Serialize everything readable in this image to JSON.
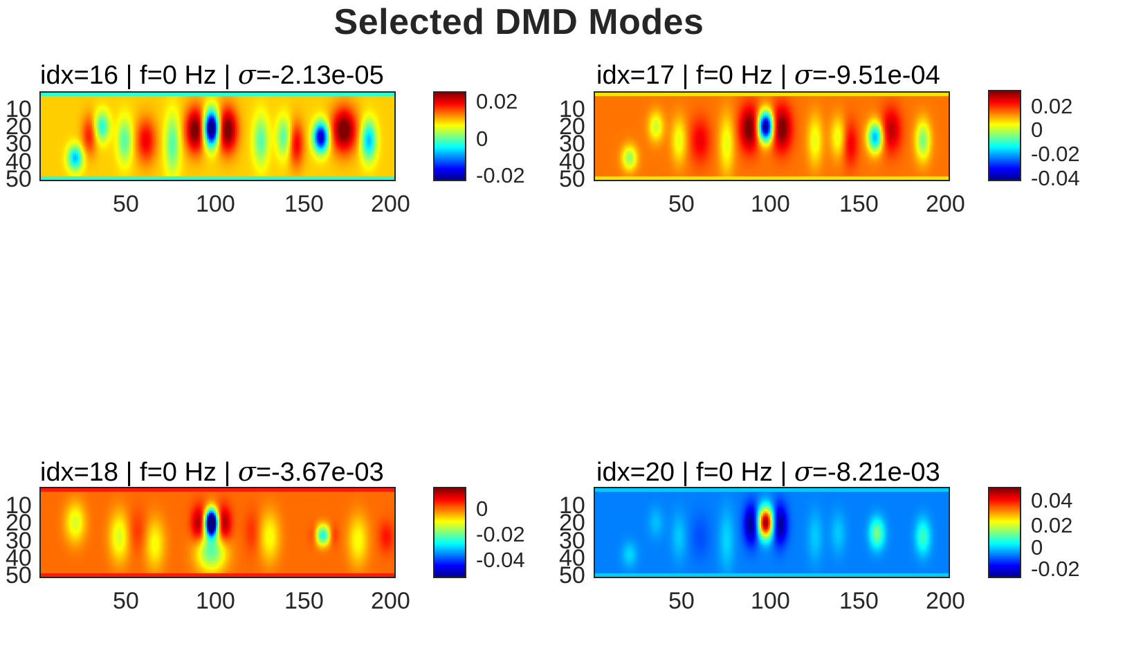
{
  "figure": {
    "title": "Selected DMD Modes"
  },
  "chart_data": [
    {
      "type": "heatmap",
      "title_parts": {
        "prefix": "idx=16 | f=0 Hz | ",
        "symbol": "σ",
        "suffix": "=-2.13e-05"
      },
      "xlim": [
        1,
        200
      ],
      "ylim": [
        1,
        50
      ],
      "y_reversed": true,
      "xticks": [
        "50",
        "100",
        "150",
        "200"
      ],
      "yticks": [
        "10",
        "20",
        "30",
        "40",
        "50"
      ],
      "clim": [
        -0.025,
        0.03
      ],
      "colorbar_ticks": [
        {
          "value": 0.02,
          "label": "0.02"
        },
        {
          "value": 0,
          "label": "0"
        },
        {
          "value": -0.02,
          "label": "-0.02"
        }
      ],
      "background": 0.012,
      "border": -0.002,
      "blobs": [
        {
          "x": 97,
          "y": 21,
          "sx": 3,
          "sy": 7,
          "v": -0.045
        },
        {
          "x": 88,
          "y": 22,
          "sx": 4,
          "sy": 9,
          "v": 0.02
        },
        {
          "x": 106,
          "y": 22,
          "sx": 4,
          "sy": 9,
          "v": 0.02
        },
        {
          "x": 159,
          "y": 26,
          "sx": 3,
          "sy": 6,
          "v": -0.035
        },
        {
          "x": 172,
          "y": 22,
          "sx": 5,
          "sy": 9,
          "v": 0.02
        },
        {
          "x": 186,
          "y": 28,
          "sx": 3,
          "sy": 8,
          "v": -0.02
        },
        {
          "x": 20,
          "y": 38,
          "sx": 3,
          "sy": 5,
          "v": -0.02
        },
        {
          "x": 35,
          "y": 20,
          "sx": 3,
          "sy": 6,
          "v": -0.015
        },
        {
          "x": 48,
          "y": 28,
          "sx": 3,
          "sy": 9,
          "v": -0.012
        },
        {
          "x": 75,
          "y": 30,
          "sx": 3,
          "sy": 12,
          "v": -0.012
        },
        {
          "x": 125,
          "y": 28,
          "sx": 3,
          "sy": 10,
          "v": -0.012
        },
        {
          "x": 138,
          "y": 26,
          "sx": 3,
          "sy": 8,
          "v": -0.012
        },
        {
          "x": 60,
          "y": 28,
          "sx": 4,
          "sy": 9,
          "v": 0.012
        },
        {
          "x": 28,
          "y": 25,
          "sx": 3,
          "sy": 8,
          "v": 0.01
        },
        {
          "x": 145,
          "y": 30,
          "sx": 3,
          "sy": 9,
          "v": 0.012
        }
      ]
    },
    {
      "type": "heatmap",
      "title_parts": {
        "prefix": "idx=17 | f=0 Hz | ",
        "symbol": "σ",
        "suffix": "=-9.51e-04"
      },
      "xlim": [
        1,
        200
      ],
      "ylim": [
        1,
        50
      ],
      "y_reversed": true,
      "xticks": [
        "50",
        "100",
        "150",
        "200"
      ],
      "yticks": [
        "10",
        "20",
        "30",
        "40",
        "50"
      ],
      "clim": [
        -0.045,
        0.03
      ],
      "colorbar_ticks": [
        {
          "value": 0.02,
          "label": "0.02"
        },
        {
          "value": 0,
          "label": "0"
        },
        {
          "value": -0.02,
          "label": "-0.02"
        },
        {
          "value": -0.04,
          "label": "-0.04"
        }
      ],
      "background": 0.012,
      "border": 0.004,
      "blobs": [
        {
          "x": 97,
          "y": 20,
          "sx": 3,
          "sy": 6,
          "v": -0.06
        },
        {
          "x": 88,
          "y": 21,
          "sx": 4,
          "sy": 9,
          "v": 0.02
        },
        {
          "x": 106,
          "y": 21,
          "sx": 4,
          "sy": 9,
          "v": 0.02
        },
        {
          "x": 159,
          "y": 26,
          "sx": 3,
          "sy": 6,
          "v": -0.035
        },
        {
          "x": 168,
          "y": 22,
          "sx": 4,
          "sy": 9,
          "v": 0.014
        },
        {
          "x": 186,
          "y": 28,
          "sx": 3,
          "sy": 8,
          "v": -0.02
        },
        {
          "x": 20,
          "y": 38,
          "sx": 3,
          "sy": 5,
          "v": -0.018
        },
        {
          "x": 35,
          "y": 20,
          "sx": 3,
          "sy": 6,
          "v": -0.014
        },
        {
          "x": 48,
          "y": 28,
          "sx": 3,
          "sy": 9,
          "v": -0.012
        },
        {
          "x": 75,
          "y": 30,
          "sx": 3,
          "sy": 12,
          "v": -0.012
        },
        {
          "x": 125,
          "y": 28,
          "sx": 3,
          "sy": 10,
          "v": -0.012
        },
        {
          "x": 138,
          "y": 26,
          "sx": 3,
          "sy": 8,
          "v": -0.012
        },
        {
          "x": 60,
          "y": 28,
          "sx": 4,
          "sy": 9,
          "v": 0.01
        },
        {
          "x": 145,
          "y": 30,
          "sx": 3,
          "sy": 9,
          "v": 0.01
        }
      ]
    },
    {
      "type": "heatmap",
      "title_parts": {
        "prefix": "idx=18 | f=0 Hz | ",
        "symbol": "σ",
        "suffix": "=-3.67e-03"
      },
      "xlim": [
        1,
        200
      ],
      "ylim": [
        1,
        50
      ],
      "y_reversed": true,
      "xticks": [
        "50",
        "100",
        "150",
        "200"
      ],
      "yticks": [
        "10",
        "20",
        "30",
        "40",
        "50"
      ],
      "clim": [
        -0.055,
        0.01
      ],
      "colorbar_ticks": [
        {
          "value": 0,
          "label": "0"
        },
        {
          "value": -0.02,
          "label": "-0.02"
        },
        {
          "value": -0.04,
          "label": "-0.04"
        }
      ],
      "background": -0.005,
      "border": 0.0,
      "blobs": [
        {
          "x": 97,
          "y": 20,
          "sx": 2.5,
          "sy": 5,
          "v": -0.07
        },
        {
          "x": 90,
          "y": 21,
          "sx": 3,
          "sy": 7,
          "v": 0.014
        },
        {
          "x": 104,
          "y": 21,
          "sx": 3,
          "sy": 7,
          "v": 0.014
        },
        {
          "x": 97,
          "y": 36,
          "sx": 6,
          "sy": 8,
          "v": -0.02
        },
        {
          "x": 160,
          "y": 27,
          "sx": 3,
          "sy": 4,
          "v": -0.025
        },
        {
          "x": 155,
          "y": 27,
          "sx": 2,
          "sy": 4,
          "v": 0.005
        },
        {
          "x": 166,
          "y": 27,
          "sx": 2,
          "sy": 4,
          "v": 0.005
        },
        {
          "x": 196,
          "y": 28,
          "sx": 3,
          "sy": 6,
          "v": 0.006
        },
        {
          "x": 20,
          "y": 20,
          "sx": 4,
          "sy": 8,
          "v": -0.012
        },
        {
          "x": 45,
          "y": 28,
          "sx": 4,
          "sy": 10,
          "v": -0.012
        },
        {
          "x": 65,
          "y": 32,
          "sx": 4,
          "sy": 10,
          "v": -0.01
        },
        {
          "x": 130,
          "y": 28,
          "sx": 4,
          "sy": 10,
          "v": -0.01
        },
        {
          "x": 180,
          "y": 30,
          "sx": 4,
          "sy": 10,
          "v": -0.01
        },
        {
          "x": 55,
          "y": 25,
          "sx": 4,
          "sy": 8,
          "v": 0.004
        },
        {
          "x": 120,
          "y": 25,
          "sx": 3,
          "sy": 8,
          "v": 0.004
        }
      ]
    },
    {
      "type": "heatmap",
      "title_parts": {
        "prefix": "idx=20 | f=0 Hz | ",
        "symbol": "σ",
        "suffix": "=-8.21e-03"
      },
      "xlim": [
        1,
        200
      ],
      "ylim": [
        1,
        50
      ],
      "y_reversed": true,
      "xticks": [
        "50",
        "100",
        "150",
        "200"
      ],
      "yticks": [
        "10",
        "20",
        "30",
        "40",
        "50"
      ],
      "clim": [
        -0.03,
        0.05
      ],
      "colorbar_ticks": [
        {
          "value": 0.04,
          "label": "0.04"
        },
        {
          "value": 0.02,
          "label": "0.02"
        },
        {
          "value": 0,
          "label": "0"
        },
        {
          "value": -0.02,
          "label": "-0.02"
        }
      ],
      "background": -0.01,
      "border": -0.004,
      "blobs": [
        {
          "x": 97,
          "y": 20,
          "sx": 3,
          "sy": 6,
          "v": 0.06
        },
        {
          "x": 89,
          "y": 21,
          "sx": 3,
          "sy": 8,
          "v": -0.02
        },
        {
          "x": 105,
          "y": 21,
          "sx": 3,
          "sy": 8,
          "v": -0.02
        },
        {
          "x": 160,
          "y": 26,
          "sx": 3,
          "sy": 6,
          "v": 0.02
        },
        {
          "x": 186,
          "y": 28,
          "sx": 3,
          "sy": 7,
          "v": 0.015
        },
        {
          "x": 20,
          "y": 38,
          "sx": 3,
          "sy": 5,
          "v": 0.007
        },
        {
          "x": 35,
          "y": 20,
          "sx": 3,
          "sy": 6,
          "v": 0.005
        },
        {
          "x": 48,
          "y": 28,
          "sx": 3,
          "sy": 9,
          "v": 0.006
        },
        {
          "x": 75,
          "y": 30,
          "sx": 3,
          "sy": 12,
          "v": 0.007
        },
        {
          "x": 125,
          "y": 28,
          "sx": 3,
          "sy": 10,
          "v": 0.006
        },
        {
          "x": 138,
          "y": 26,
          "sx": 3,
          "sy": 8,
          "v": 0.006
        },
        {
          "x": 60,
          "y": 28,
          "sx": 4,
          "sy": 9,
          "v": -0.004
        }
      ]
    }
  ]
}
